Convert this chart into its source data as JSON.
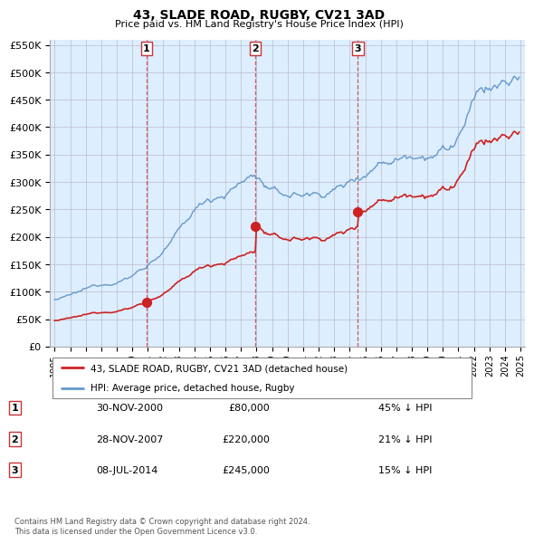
{
  "title": "43, SLADE ROAD, RUGBY, CV21 3AD",
  "subtitle": "Price paid vs. HM Land Registry's House Price Index (HPI)",
  "hpi_color": "#6699cc",
  "price_color": "#cc2222",
  "vline_color": "#cc3333",
  "background_color": "#ffffff",
  "plot_bg_color": "#ddeeff",
  "grid_color": "#bbbbcc",
  "legend_label_price": "43, SLADE ROAD, RUGBY, CV21 3AD (detached house)",
  "legend_label_hpi": "HPI: Average price, detached house, Rugby",
  "transactions": [
    {
      "num": 1,
      "date": "30-NOV-2000",
      "price": 80000,
      "pct": "45%",
      "dir": "↓",
      "x": 2000.92
    },
    {
      "num": 2,
      "date": "28-NOV-2007",
      "price": 220000,
      "pct": "21%",
      "dir": "↓",
      "x": 2007.92
    },
    {
      "num": 3,
      "date": "08-JUL-2014",
      "price": 245000,
      "pct": "15%",
      "dir": "↓",
      "x": 2014.53
    }
  ],
  "footer": "Contains HM Land Registry data © Crown copyright and database right 2024.\nThis data is licensed under the Open Government Licence v3.0.",
  "ylim": [
    0,
    560000
  ],
  "yticks": [
    0,
    50000,
    100000,
    150000,
    200000,
    250000,
    300000,
    350000,
    400000,
    450000,
    500000,
    550000
  ],
  "xlim": [
    1994.7,
    2025.3
  ]
}
